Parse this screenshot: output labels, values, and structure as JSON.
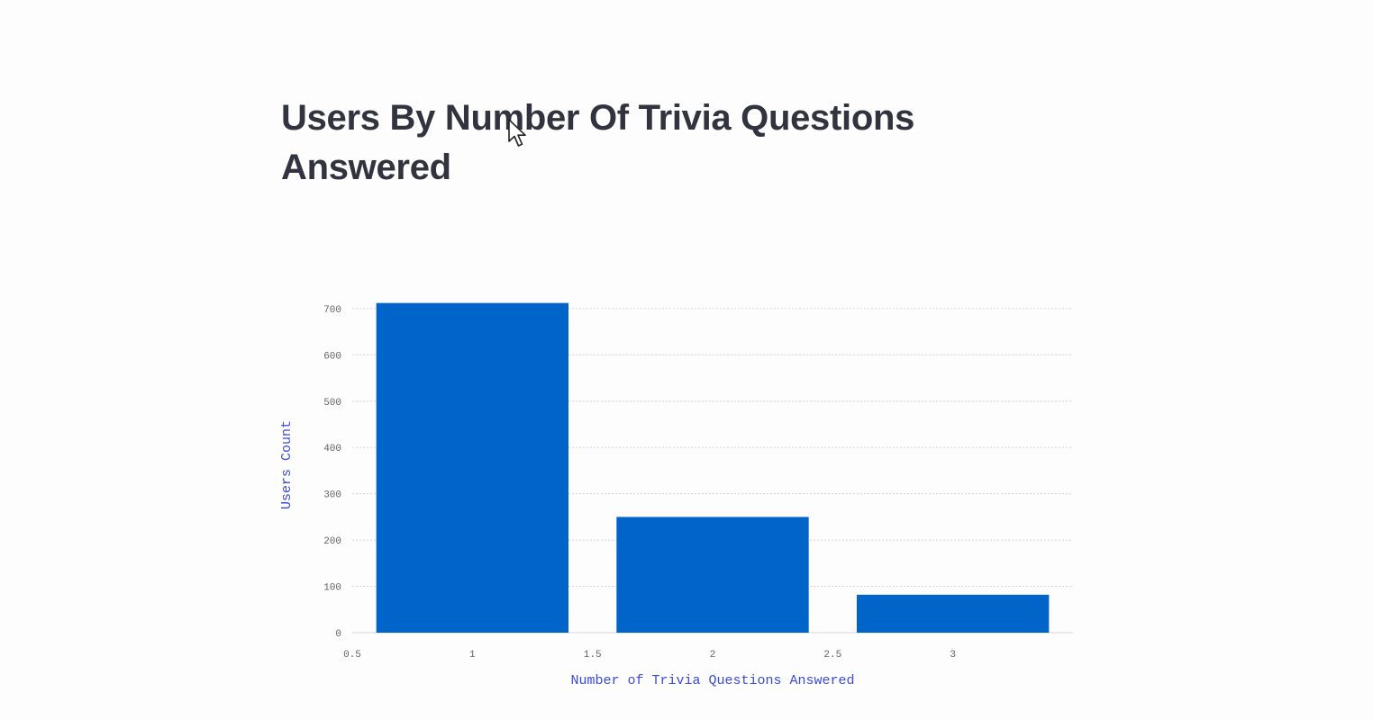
{
  "page": {
    "title": "Users By Number Of Trivia Questions Answered"
  },
  "colors": {
    "bar": "#0064c8",
    "axis_title": "#3b4bd8",
    "title": "#31333f"
  },
  "icons": {
    "cursor": "mouse-pointer-icon"
  },
  "chart_data": {
    "type": "bar",
    "x": [
      1,
      2,
      3
    ],
    "values": [
      712,
      250,
      82
    ],
    "bar_width": 0.8,
    "xlabel": "Number of Trivia Questions Answered",
    "ylabel": "Users Count",
    "xlim": [
      0.5,
      3.5
    ],
    "ylim": [
      0,
      725
    ],
    "x_ticks": [
      0.5,
      1,
      1.5,
      2,
      2.5,
      3
    ],
    "y_ticks": [
      0,
      100,
      200,
      300,
      400,
      500,
      600,
      700
    ],
    "grid": true
  }
}
